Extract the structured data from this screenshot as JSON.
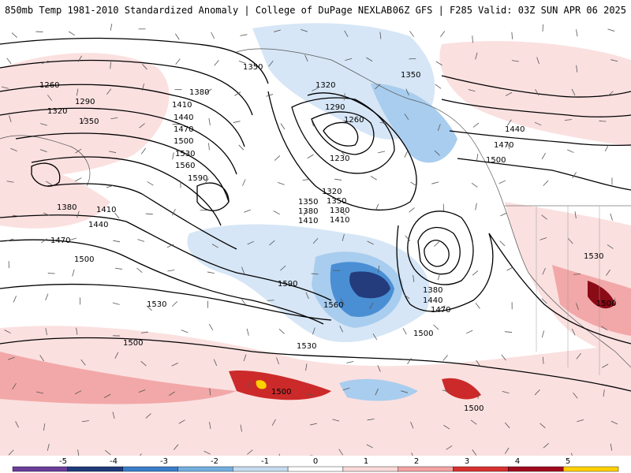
{
  "header": {
    "left": "850mb Temp 1981-2010 Standardized Anomaly | College of DuPage NEXLAB",
    "right": "06Z GFS | F285 Valid: 03Z SUN APR 06 2025"
  },
  "contour_labels": [
    {
      "text": "1260"
    },
    {
      "text": "1290"
    },
    {
      "text": "1320"
    },
    {
      "text": "1350"
    },
    {
      "text": "1350"
    },
    {
      "text": "1380"
    },
    {
      "text": "1410"
    },
    {
      "text": "1440"
    },
    {
      "text": "1470"
    },
    {
      "text": "1500"
    },
    {
      "text": "1530"
    },
    {
      "text": "1560"
    },
    {
      "text": "1590"
    },
    {
      "text": "1380"
    },
    {
      "text": "1410"
    },
    {
      "text": "1440"
    },
    {
      "text": "1470"
    },
    {
      "text": "1500"
    },
    {
      "text": "1350"
    },
    {
      "text": "1320"
    },
    {
      "text": "1290"
    },
    {
      "text": "1260"
    },
    {
      "text": "1230"
    },
    {
      "text": "1320"
    },
    {
      "text": "1350"
    },
    {
      "text": "1380"
    },
    {
      "text": "1410"
    },
    {
      "text": "1350"
    },
    {
      "text": "1380"
    },
    {
      "text": "1410"
    },
    {
      "text": "1440"
    },
    {
      "text": "1470"
    },
    {
      "text": "1500"
    },
    {
      "text": "1380"
    },
    {
      "text": "1440"
    },
    {
      "text": "1470"
    },
    {
      "text": "1500"
    },
    {
      "text": "1590"
    },
    {
      "text": "1560"
    },
    {
      "text": "1530"
    },
    {
      "text": "1530"
    },
    {
      "text": "1500"
    },
    {
      "text": "1500"
    },
    {
      "text": "1500"
    },
    {
      "text": "1530"
    },
    {
      "text": "1500"
    }
  ],
  "colorbar": {
    "ticks": [
      "-5",
      "-4",
      "-3",
      "-2",
      "-1",
      "0",
      "1",
      "2",
      "3",
      "4",
      "5"
    ],
    "colors": [
      "#6a3d9a",
      "#1f3a7a",
      "#3a7dc9",
      "#74aee0",
      "#c6dbef",
      "#ffffff",
      "#fbdada",
      "#f4a3a3",
      "#d73030",
      "#a00a1e",
      "#ffd000"
    ]
  },
  "colors": {
    "cold_weak": "#d6e6f6",
    "cold_mid": "#a9cdee",
    "cold_strong": "#4a8fd4",
    "cold_core": "#243c7c",
    "warm_weak": "#fbe0e0",
    "warm_mid": "#f2a8a8",
    "warm_strong": "#cc2a2a",
    "warm_core": "#8a0a16",
    "extreme": "#ffd000"
  }
}
